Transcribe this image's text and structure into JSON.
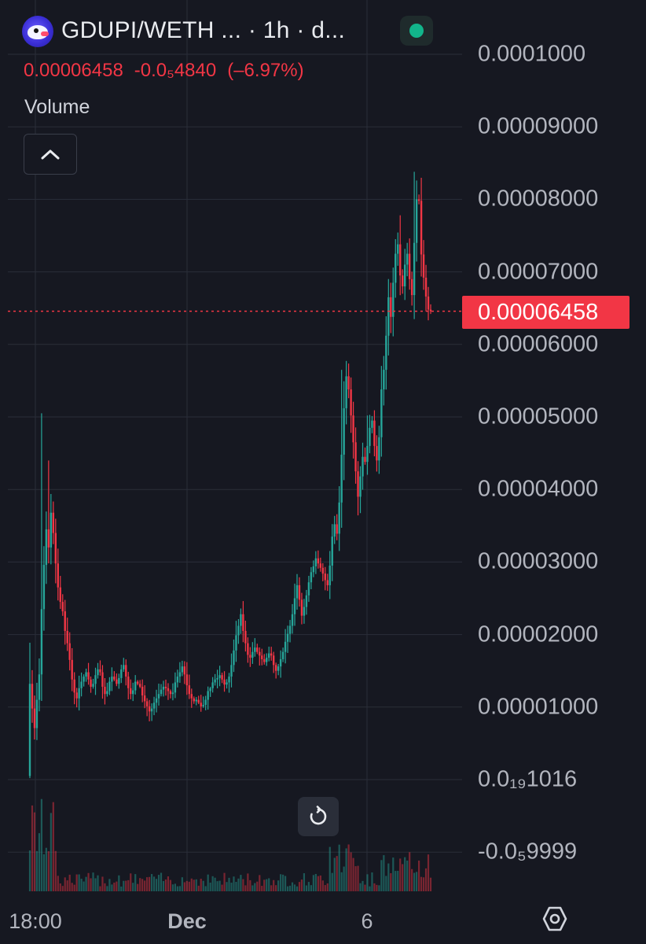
{
  "header": {
    "pair_title": "GDUPI/WETH ... · 1h · d...",
    "logo_icon": "gdupi-token-logo-icon",
    "status_icon": "market-status-dot-icon",
    "status_color": "#12b58b"
  },
  "ohlc": {
    "last": "0.00006458",
    "change": "-0.0₅4840",
    "change_pct": "(–6.97%)"
  },
  "indicator": {
    "volume_label": "Volume",
    "collapse_icon": "chevron-up-icon"
  },
  "controls": {
    "reset_icon": "reset-chart-icon",
    "settings_icon": "chart-settings-icon"
  },
  "colors": {
    "background": "#161821",
    "up": "#26a69a",
    "down": "#f23645",
    "grid": "#2a2e39"
  },
  "chart_data": {
    "type": "candlestick",
    "pair": "GDUPI/WETH",
    "interval": "1h",
    "current_price": 6.458e-05,
    "y_axis_labels": [
      "0.0001000",
      "0.00009000",
      "0.00008000",
      "0.00007000",
      "0.00006000",
      "0.00005000",
      "0.00004000",
      "0.00003000",
      "0.00002000",
      "0.00001000",
      "0.0₁₉1016",
      "-0.0₅9999"
    ],
    "y_axis_values": [
      0.0001,
      9e-05,
      8e-05,
      7e-05,
      6e-05,
      5e-05,
      4e-05,
      3e-05,
      2e-05,
      1e-05,
      0.0,
      -1e-05
    ],
    "current_price_label": "0.00006458",
    "x_axis_labels": [
      {
        "label": "18:00",
        "bold": false
      },
      {
        "label": "Dec",
        "bold": true
      },
      {
        "label": "6",
        "bold": false
      }
    ],
    "ylim": [
      -1.3e-05,
      0.0001
    ],
    "grid": true,
    "close_series": [
      1.32e-05,
      9.8e-06,
      7.1e-06,
      1.1e-05,
      1.45e-05,
      2.35e-05,
      2.96e-05,
      3.45e-05,
      3.2e-05,
      3.68e-05,
      3.4e-05,
      2.98e-05,
      2.65e-05,
      2.45e-05,
      2.32e-05,
      2.05e-05,
      1.88e-05,
      1.65e-05,
      1.38e-05,
      1.2e-05,
      1.12e-05,
      1.26e-05,
      1.35e-05,
      1.42e-05,
      1.48e-05,
      1.38e-05,
      1.28e-05,
      1.32e-05,
      1.44e-05,
      1.52e-05,
      1.48e-05,
      1.28e-05,
      1.18e-05,
      1.22e-05,
      1.35e-05,
      1.42e-05,
      1.38e-05,
      1.32e-05,
      1.4e-05,
      1.52e-05,
      1.58e-05,
      1.42e-05,
      1.26e-05,
      1.18e-05,
      1.23e-05,
      1.35e-05,
      1.32e-05,
      1.28e-05,
      1.16e-05,
      1.08e-05,
      1.01e-05,
      9.4e-06,
      9.8e-06,
      1.06e-05,
      1.12e-05,
      1.18e-05,
      1.24e-05,
      1.28e-05,
      1.26e-05,
      1.22e-05,
      1.18e-05,
      1.2e-05,
      1.34e-05,
      1.42e-05,
      1.48e-05,
      1.56e-05,
      1.45e-05,
      1.3e-05,
      1.18e-05,
      1.12e-05,
      1.08e-05,
      1.1e-05,
      1.06e-05,
      1.01e-05,
      1.03e-05,
      1.1e-05,
      1.22e-05,
      1.26e-05,
      1.34e-05,
      1.38e-05,
      1.4e-05,
      1.44e-05,
      1.38e-05,
      1.31e-05,
      1.34e-05,
      1.42e-05,
      1.58e-05,
      1.78e-05,
      1.99e-05,
      2.12e-05,
      2.28e-05,
      2.05e-05,
      1.88e-05,
      1.72e-05,
      1.68e-05,
      1.76e-05,
      1.82e-05,
      1.76e-05,
      1.71e-05,
      1.66e-05,
      1.62e-05,
      1.68e-05,
      1.74e-05,
      1.71e-05,
      1.58e-05,
      1.5e-05,
      1.56e-05,
      1.66e-05,
      1.76e-05,
      1.9e-05,
      2.01e-05,
      2.12e-05,
      2.28e-05,
      2.5e-05,
      2.68e-05,
      2.48e-05,
      2.26e-05,
      2.38e-05,
      2.54e-05,
      2.72e-05,
      2.86e-05,
      2.94e-05,
      3.05e-05,
      2.98e-05,
      2.92e-05,
      2.84e-05,
      2.75e-05,
      2.68e-05,
      2.95e-05,
      3.35e-05,
      3.52e-05,
      3.39e-05,
      3.82e-05,
      4.48e-05,
      5.12e-05,
      5.56e-05,
      5.38e-05,
      5.02e-05,
      4.65e-05,
      4.25e-05,
      3.9e-05,
      4.18e-05,
      4.45e-05,
      4.38e-05,
      4.6e-05,
      4.85e-05,
      4.95e-05,
      4.6e-05,
      4.4e-05,
      4.72e-05,
      5.38e-05,
      5.65e-05,
      6.12e-05,
      6.65e-05,
      6.38e-05,
      6.85e-05,
      7.25e-05,
      7.38e-05,
      6.95e-05,
      6.8e-05,
      7.1e-05,
      7.25e-05,
      6.9e-05,
      6.68e-05,
      7.4e-05,
      8e-05,
      7.98e-05,
      7.24e-05,
      6.92e-05,
      6.66e-05,
      6.48e-05,
      6.458e-05
    ]
  }
}
